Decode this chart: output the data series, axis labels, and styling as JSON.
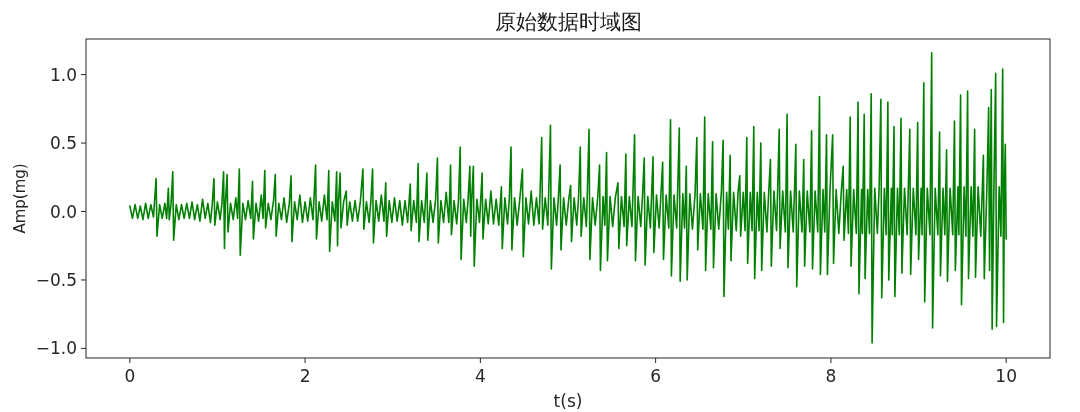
{
  "chart_data": {
    "type": "line",
    "title": "原始数据时域图",
    "xlabel": "t(s)",
    "ylabel": "Amp(mg)",
    "x": [
      0.0,
      0.03,
      0.06,
      0.09,
      0.12,
      0.15,
      0.18,
      0.21,
      0.24,
      0.27,
      0.3,
      0.31,
      0.34,
      0.37,
      0.4,
      0.42,
      0.44,
      0.45,
      0.47,
      0.49,
      0.5,
      0.53,
      0.56,
      0.59,
      0.62,
      0.65,
      0.68,
      0.71,
      0.74,
      0.77,
      0.8,
      0.83,
      0.86,
      0.89,
      0.92,
      0.94,
      0.96,
      0.97,
      1.0,
      1.03,
      1.05,
      1.07,
      1.08,
      1.09,
      1.11,
      1.12,
      1.15,
      1.18,
      1.21,
      1.23,
      1.25,
      1.26,
      1.29,
      1.32,
      1.35,
      1.38,
      1.4,
      1.41,
      1.44,
      1.47,
      1.5,
      1.52,
      1.54,
      1.55,
      1.58,
      1.61,
      1.64,
      1.66,
      1.67,
      1.7,
      1.73,
      1.76,
      1.79,
      1.82,
      1.84,
      1.85,
      1.88,
      1.91,
      1.94,
      1.97,
      2.0,
      2.03,
      2.06,
      2.09,
      2.12,
      2.13,
      2.16,
      2.19,
      2.22,
      2.25,
      2.27,
      2.28,
      2.31,
      2.34,
      2.36,
      2.37,
      2.38,
      2.4,
      2.41,
      2.44,
      2.47,
      2.48,
      2.51,
      2.54,
      2.57,
      2.6,
      2.63,
      2.66,
      2.67,
      2.7,
      2.73,
      2.75,
      2.77,
      2.78,
      2.81,
      2.84,
      2.87,
      2.9,
      2.92,
      2.93,
      2.96,
      2.99,
      3.02,
      3.05,
      3.08,
      3.11,
      3.14,
      3.17,
      3.2,
      3.21,
      3.24,
      3.27,
      3.29,
      3.3,
      3.33,
      3.36,
      3.39,
      3.4,
      3.43,
      3.46,
      3.49,
      3.51,
      3.52,
      3.55,
      3.58,
      3.61,
      3.64,
      3.66,
      3.67,
      3.7,
      3.73,
      3.75,
      3.77,
      3.78,
      3.81,
      3.84,
      3.86,
      3.88,
      3.89,
      3.9,
      3.92,
      3.93,
      3.96,
      3.99,
      4.02,
      4.03,
      4.06,
      4.09,
      4.12,
      4.15,
      4.18,
      4.21,
      4.24,
      4.25,
      4.28,
      4.31,
      4.33,
      4.35,
      4.36,
      4.39,
      4.42,
      4.45,
      4.48,
      4.49,
      4.52,
      4.55,
      4.58,
      4.61,
      4.64,
      4.67,
      4.7,
      4.71,
      4.74,
      4.77,
      4.8,
      4.81,
      4.84,
      4.87,
      4.89,
      4.91,
      4.92,
      4.95,
      4.98,
      5.01,
      5.03,
      5.04,
      5.07,
      5.1,
      5.12,
      5.14,
      5.15,
      5.18,
      5.21,
      5.24,
      5.25,
      5.28,
      5.31,
      5.34,
      5.36,
      5.37,
      5.4,
      5.42,
      5.44,
      5.45,
      5.48,
      5.51,
      5.54,
      5.57,
      5.58,
      5.61,
      5.64,
      5.66,
      5.67,
      5.7,
      5.73,
      5.76,
      5.77,
      5.8,
      5.83,
      5.85,
      5.87,
      5.88,
      5.91,
      5.94,
      5.97,
      5.98,
      6.01,
      6.04,
      6.06,
      6.08,
      6.09,
      6.12,
      6.15,
      6.17,
      6.18,
      6.21,
      6.24,
      6.27,
      6.28,
      6.31,
      6.33,
      6.35,
      6.36,
      6.39,
      6.42,
      6.45,
      6.47,
      6.48,
      6.51,
      6.54,
      6.56,
      6.57,
      6.6,
      6.63,
      6.65,
      6.66,
      6.69,
      6.72,
      6.75,
      6.77,
      6.78,
      6.81,
      6.83,
      6.85,
      6.86,
      6.89,
      6.92,
      6.94,
      6.96,
      6.97,
      7.0,
      7.02,
      7.04,
      7.05,
      7.08,
      7.1,
      7.12,
      7.13,
      7.16,
      7.18,
      7.2,
      7.21,
      7.24,
      7.27,
      7.29,
      7.31,
      7.32,
      7.35,
      7.38,
      7.41,
      7.42,
      7.45,
      7.48,
      7.5,
      7.51,
      7.54,
      7.57,
      7.6,
      7.61,
      7.64,
      7.67,
      7.69,
      7.7,
      7.73,
      7.76,
      7.78,
      7.79,
      7.82,
      7.85,
      7.87,
      7.88,
      7.91,
      7.93,
      7.95,
      7.96,
      7.99,
      8.02,
      8.03,
      8.06,
      8.09,
      8.12,
      8.14,
      8.15,
      8.18,
      8.2,
      8.22,
      8.23,
      8.26,
      8.29,
      8.31,
      8.32,
      8.35,
      8.36,
      8.38,
      8.39,
      8.42,
      8.44,
      8.46,
      8.47,
      8.5,
      8.53,
      8.55,
      8.57,
      8.58,
      8.61,
      8.63,
      8.65,
      8.66,
      8.69,
      8.7,
      8.72,
      8.73,
      8.76,
      8.78,
      8.8,
      8.81,
      8.84,
      8.87,
      8.9,
      8.91,
      8.94,
      8.97,
      8.99,
      9.0,
      9.03,
      9.04,
      9.06,
      9.07,
      9.1,
      9.13,
      9.15,
      9.16,
      9.19,
      9.22,
      9.24,
      9.25,
      9.28,
      9.3,
      9.32,
      9.33,
      9.36,
      9.39,
      9.41,
      9.42,
      9.45,
      9.46,
      9.48,
      9.49,
      9.52,
      9.54,
      9.56,
      9.57,
      9.6,
      9.62,
      9.64,
      9.65,
      9.68,
      9.71,
      9.74,
      9.75,
      9.78,
      9.8,
      9.81,
      9.83,
      9.84,
      9.86,
      9.88,
      9.89,
      9.92,
      9.94,
      9.96,
      9.97,
      9.98,
      9.99,
      10.0
    ],
    "series": [
      {
        "color": "#008000",
        "values": [
          0.04,
          -0.05,
          0.05,
          -0.05,
          0.04,
          -0.06,
          0.06,
          -0.05,
          0.05,
          -0.04,
          0.24,
          -0.18,
          0.05,
          -0.05,
          0.06,
          -0.05,
          0.17,
          -0.06,
          0.05,
          0.29,
          -0.21,
          0.05,
          -0.06,
          0.05,
          -0.05,
          0.06,
          -0.05,
          0.07,
          -0.06,
          0.05,
          -0.07,
          0.09,
          -0.05,
          0.06,
          -0.08,
          0.05,
          0.24,
          -0.1,
          0.07,
          -0.06,
          0.05,
          0.29,
          -0.27,
          0.05,
          0.27,
          -0.15,
          0.06,
          -0.06,
          0.1,
          -0.05,
          0.31,
          -0.32,
          0.06,
          -0.06,
          0.08,
          -0.05,
          0.22,
          -0.2,
          0.06,
          -0.07,
          0.12,
          -0.05,
          0.3,
          -0.12,
          0.06,
          -0.06,
          0.08,
          0.27,
          -0.18,
          0.06,
          -0.06,
          0.1,
          -0.08,
          0.06,
          0.26,
          -0.22,
          0.07,
          -0.06,
          0.12,
          -0.08,
          0.07,
          -0.07,
          0.1,
          -0.06,
          0.34,
          -0.2,
          0.07,
          -0.07,
          0.12,
          -0.06,
          0.3,
          -0.29,
          0.07,
          -0.07,
          0.29,
          -0.25,
          0.06,
          0.28,
          -0.12,
          0.07,
          0.15,
          -0.1,
          0.07,
          -0.07,
          0.08,
          -0.07,
          0.07,
          0.31,
          -0.13,
          0.07,
          -0.08,
          0.07,
          0.31,
          -0.23,
          0.08,
          -0.07,
          0.12,
          -0.07,
          0.21,
          -0.18,
          0.08,
          -0.08,
          0.1,
          -0.07,
          0.08,
          -0.1,
          0.08,
          -0.08,
          0.2,
          -0.14,
          0.08,
          -0.08,
          0.35,
          -0.22,
          0.08,
          -0.08,
          0.28,
          -0.21,
          0.08,
          -0.08,
          0.09,
          0.39,
          -0.23,
          0.08,
          -0.08,
          0.14,
          -0.08,
          0.34,
          -0.17,
          0.08,
          -0.09,
          0.08,
          0.47,
          -0.35,
          0.09,
          -0.08,
          0.09,
          0.33,
          -0.18,
          0.08,
          0.33,
          -0.4,
          0.09,
          -0.08,
          0.28,
          -0.2,
          0.09,
          -0.09,
          0.15,
          -0.09,
          0.09,
          -0.1,
          0.18,
          -0.27,
          0.1,
          -0.09,
          0.09,
          0.47,
          -0.28,
          0.1,
          -0.1,
          0.09,
          0.31,
          -0.33,
          0.1,
          -0.09,
          0.15,
          -0.1,
          0.1,
          -0.09,
          0.54,
          -0.13,
          0.1,
          -0.1,
          0.63,
          -0.42,
          0.1,
          -0.1,
          0.1,
          0.34,
          -0.28,
          0.1,
          -0.1,
          0.1,
          0.19,
          -0.22,
          0.1,
          -0.1,
          0.1,
          0.47,
          -0.18,
          0.1,
          -0.11,
          0.6,
          -0.35,
          0.1,
          -0.1,
          0.11,
          0.34,
          -0.43,
          0.11,
          -0.1,
          0.43,
          -0.36,
          0.11,
          -0.11,
          0.1,
          0.21,
          -0.27,
          0.11,
          -0.11,
          0.42,
          -0.25,
          0.11,
          -0.11,
          0.56,
          -0.36,
          0.11,
          -0.11,
          0.11,
          0.39,
          -0.39,
          0.11,
          -0.12,
          0.4,
          -0.3,
          0.12,
          -0.12,
          0.12,
          0.36,
          -0.35,
          0.12,
          -0.12,
          0.67,
          -0.47,
          0.12,
          -0.12,
          0.61,
          -0.51,
          0.13,
          -0.12,
          0.33,
          -0.5,
          0.13,
          -0.13,
          0.13,
          0.54,
          -0.28,
          0.13,
          -0.13,
          0.69,
          -0.43,
          0.13,
          -0.13,
          0.51,
          -0.41,
          0.13,
          -0.13,
          0.14,
          0.52,
          -0.62,
          0.14,
          -0.13,
          0.41,
          -0.36,
          0.14,
          -0.14,
          0.14,
          0.26,
          -0.18,
          0.14,
          -0.14,
          0.54,
          -0.38,
          0.14,
          -0.14,
          0.62,
          -0.49,
          0.14,
          -0.14,
          0.5,
          -0.43,
          0.14,
          -0.15,
          0.14,
          0.38,
          -0.4,
          0.15,
          -0.14,
          0.6,
          -0.27,
          0.15,
          -0.15,
          0.71,
          -0.41,
          0.15,
          -0.15,
          0.49,
          -0.55,
          0.15,
          -0.15,
          0.38,
          -0.4,
          0.15,
          -0.15,
          0.59,
          -0.42,
          0.15,
          -0.15,
          0.84,
          -0.46,
          0.16,
          -0.15,
          0.56,
          -0.46,
          0.16,
          0.56,
          -0.38,
          0.16,
          -0.16,
          0.16,
          0.33,
          -0.21,
          0.16,
          -0.16,
          0.69,
          -0.4,
          0.16,
          -0.16,
          0.8,
          -0.6,
          0.16,
          -0.16,
          0.71,
          -0.49,
          0.16,
          -0.16,
          0.86,
          -0.96,
          0.17,
          -0.16,
          0.17,
          0.82,
          -0.63,
          0.17,
          -0.17,
          0.8,
          -0.5,
          0.17,
          -0.17,
          0.62,
          -0.62,
          0.17,
          -0.17,
          0.68,
          -0.45,
          0.17,
          -0.17,
          0.6,
          -0.46,
          0.17,
          -0.17,
          0.65,
          -0.35,
          0.17,
          -0.17,
          0.94,
          -0.66,
          0.17,
          -0.17,
          1.16,
          -0.85,
          0.17,
          -0.17,
          0.58,
          -0.47,
          0.17,
          -0.17,
          0.45,
          -0.51,
          0.17,
          -0.17,
          0.66,
          -0.43,
          0.18,
          -0.17,
          0.85,
          -0.68,
          0.18,
          -0.18,
          0.88,
          -0.49,
          0.18,
          -0.18,
          0.6,
          -0.48,
          0.18,
          -0.18,
          0.41,
          -0.49,
          0.18,
          0.76,
          -0.43,
          0.89,
          -0.86,
          0.18,
          1.01,
          -0.84,
          0.18,
          -0.18,
          1.04,
          -0.81,
          0.18,
          0.49,
          -0.2
        ]
      }
    ],
    "xlim": [
      -0.5,
      10.5
    ],
    "ylim": [
      -1.07,
      1.26
    ],
    "xticks": [
      0,
      2,
      4,
      6,
      8,
      10
    ],
    "yticks": [
      {
        "value": -1,
        "label": "−1.0"
      },
      {
        "value": -0.5,
        "label": "−0.5"
      },
      {
        "value": 0,
        "label": "0.0"
      },
      {
        "value": 0.5,
        "label": "0.5"
      },
      {
        "value": 1,
        "label": "1.0"
      }
    ]
  }
}
